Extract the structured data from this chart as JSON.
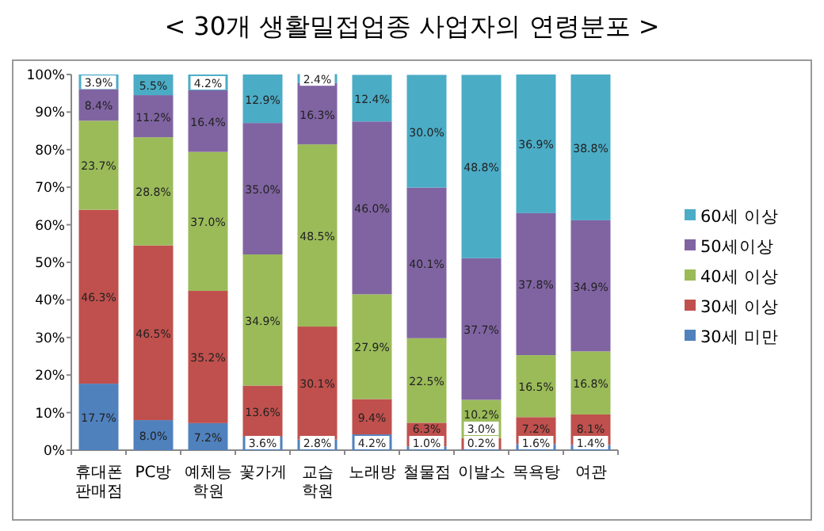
{
  "chart_data": {
    "type": "bar",
    "stacked": true,
    "title": "< 30개 생활밀접업종 사업자의 연령분포 >",
    "categories": [
      "휴대폰판매점",
      "PC방",
      "예체능학원",
      "꽃가게",
      "교습학원",
      "노래방",
      "철물점",
      "이발소",
      "목욕탕",
      "여관"
    ],
    "ylim": [
      0,
      100
    ],
    "yticks": [
      {
        "value": 0,
        "label": "0%"
      },
      {
        "value": 10,
        "label": "10%"
      },
      {
        "value": 20,
        "label": "20%"
      },
      {
        "value": 30,
        "label": "30%"
      },
      {
        "value": 40,
        "label": "40%"
      },
      {
        "value": 50,
        "label": "50%"
      },
      {
        "value": 60,
        "label": "60%"
      },
      {
        "value": 70,
        "label": "70%"
      },
      {
        "value": 80,
        "label": "80%"
      },
      {
        "value": 90,
        "label": "90%"
      },
      {
        "value": 100,
        "label": "100%"
      }
    ],
    "legend": "right",
    "grid": false,
    "series": [
      {
        "name": "30세 미만",
        "color": "#4f81bd",
        "values": [
          17.7,
          8.0,
          7.2,
          3.6,
          2.8,
          4.2,
          1.0,
          0.2,
          1.6,
          1.4
        ],
        "value_labels": [
          "17.7%",
          "8.0%",
          "7.2%",
          "3.6%",
          "2.8%",
          "4.2%",
          "1.0%",
          "0.2%",
          "1.6%",
          "1.4%"
        ]
      },
      {
        "name": "30세 이상",
        "color": "#c0504d",
        "values": [
          46.3,
          46.5,
          35.2,
          13.6,
          30.1,
          9.4,
          6.3,
          3.0,
          7.2,
          8.1
        ],
        "value_labels": [
          "46.3%",
          "46.5%",
          "35.2%",
          "13.6%",
          "30.1%",
          "9.4%",
          "6.3%",
          "3.0%",
          "7.2%",
          "8.1%"
        ]
      },
      {
        "name": "40세 이상",
        "color": "#9bbb59",
        "values": [
          23.7,
          28.8,
          37.0,
          34.9,
          48.5,
          27.9,
          22.5,
          10.2,
          16.5,
          16.8
        ],
        "value_labels": [
          "23.7%",
          "28.8%",
          "37.0%",
          "34.9%",
          "48.5%",
          "27.9%",
          "22.5%",
          "10.2%",
          "16.5%",
          "16.8%"
        ]
      },
      {
        "name": "50세이상",
        "color": "#8064a2",
        "values": [
          8.4,
          11.2,
          16.4,
          35.0,
          16.3,
          46.0,
          40.1,
          37.7,
          37.8,
          34.9
        ],
        "value_labels": [
          "8.4%",
          "11.2%",
          "16.4%",
          "35.0%",
          "16.3%",
          "46.0%",
          "40.1%",
          "37.7%",
          "37.8%",
          "34.9%"
        ]
      },
      {
        "name": "60세 이상",
        "color": "#4bacc6",
        "values": [
          3.9,
          5.5,
          4.2,
          12.9,
          2.4,
          12.4,
          30.0,
          48.8,
          36.9,
          38.8
        ],
        "value_labels": [
          "3.9%",
          "5.5%",
          "4.2%",
          "12.9%",
          "2.4%",
          "12.4%",
          "30.0%",
          "48.8%",
          "36.9%",
          "38.8%"
        ]
      }
    ]
  }
}
